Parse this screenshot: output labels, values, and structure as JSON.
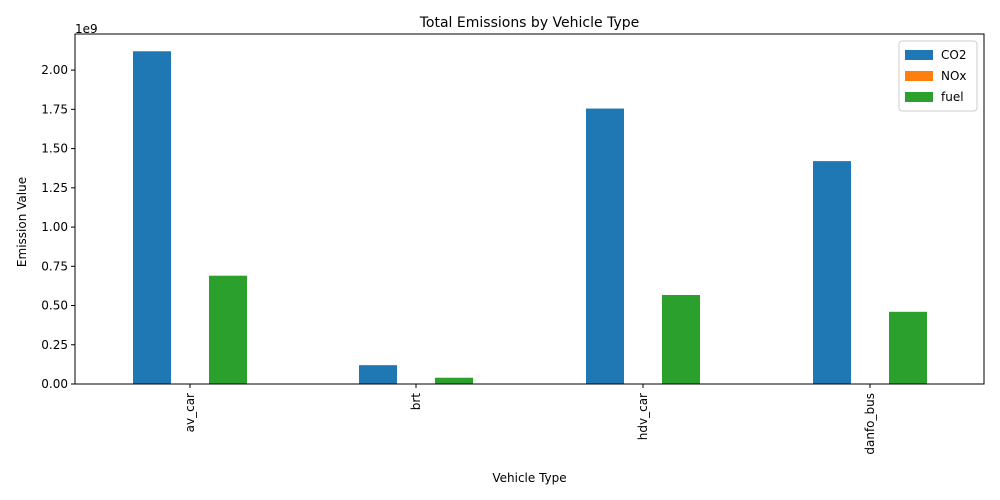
{
  "chart_data": {
    "type": "bar",
    "title": "Total Emissions by Vehicle Type",
    "xlabel": "Vehicle Type",
    "ylabel": "Emission Value",
    "scale_label": "1e9",
    "categories": [
      "av_car",
      "brt",
      "hdv_car",
      "danfo_bus"
    ],
    "series": [
      {
        "name": "CO2",
        "color": "#1f77b4",
        "values": [
          2120000000,
          120000000,
          1755000000,
          1420000000
        ]
      },
      {
        "name": "NOx",
        "color": "#ff7f0e",
        "values": [
          800000,
          50000,
          650000,
          500000
        ]
      },
      {
        "name": "fuel",
        "color": "#2ca02c",
        "values": [
          690000000,
          40000000,
          567000000,
          460000000
        ]
      }
    ],
    "ylim": [
      0,
      2230000000
    ],
    "yticks": [
      0,
      250000000,
      500000000,
      750000000,
      1000000000,
      1250000000,
      1500000000,
      1750000000,
      2000000000
    ],
    "ytick_labels": [
      "0.00",
      "0.25",
      "0.50",
      "0.75",
      "1.00",
      "1.25",
      "1.50",
      "1.75",
      "2.00"
    ],
    "grid": false,
    "legend_position": "top-right"
  }
}
